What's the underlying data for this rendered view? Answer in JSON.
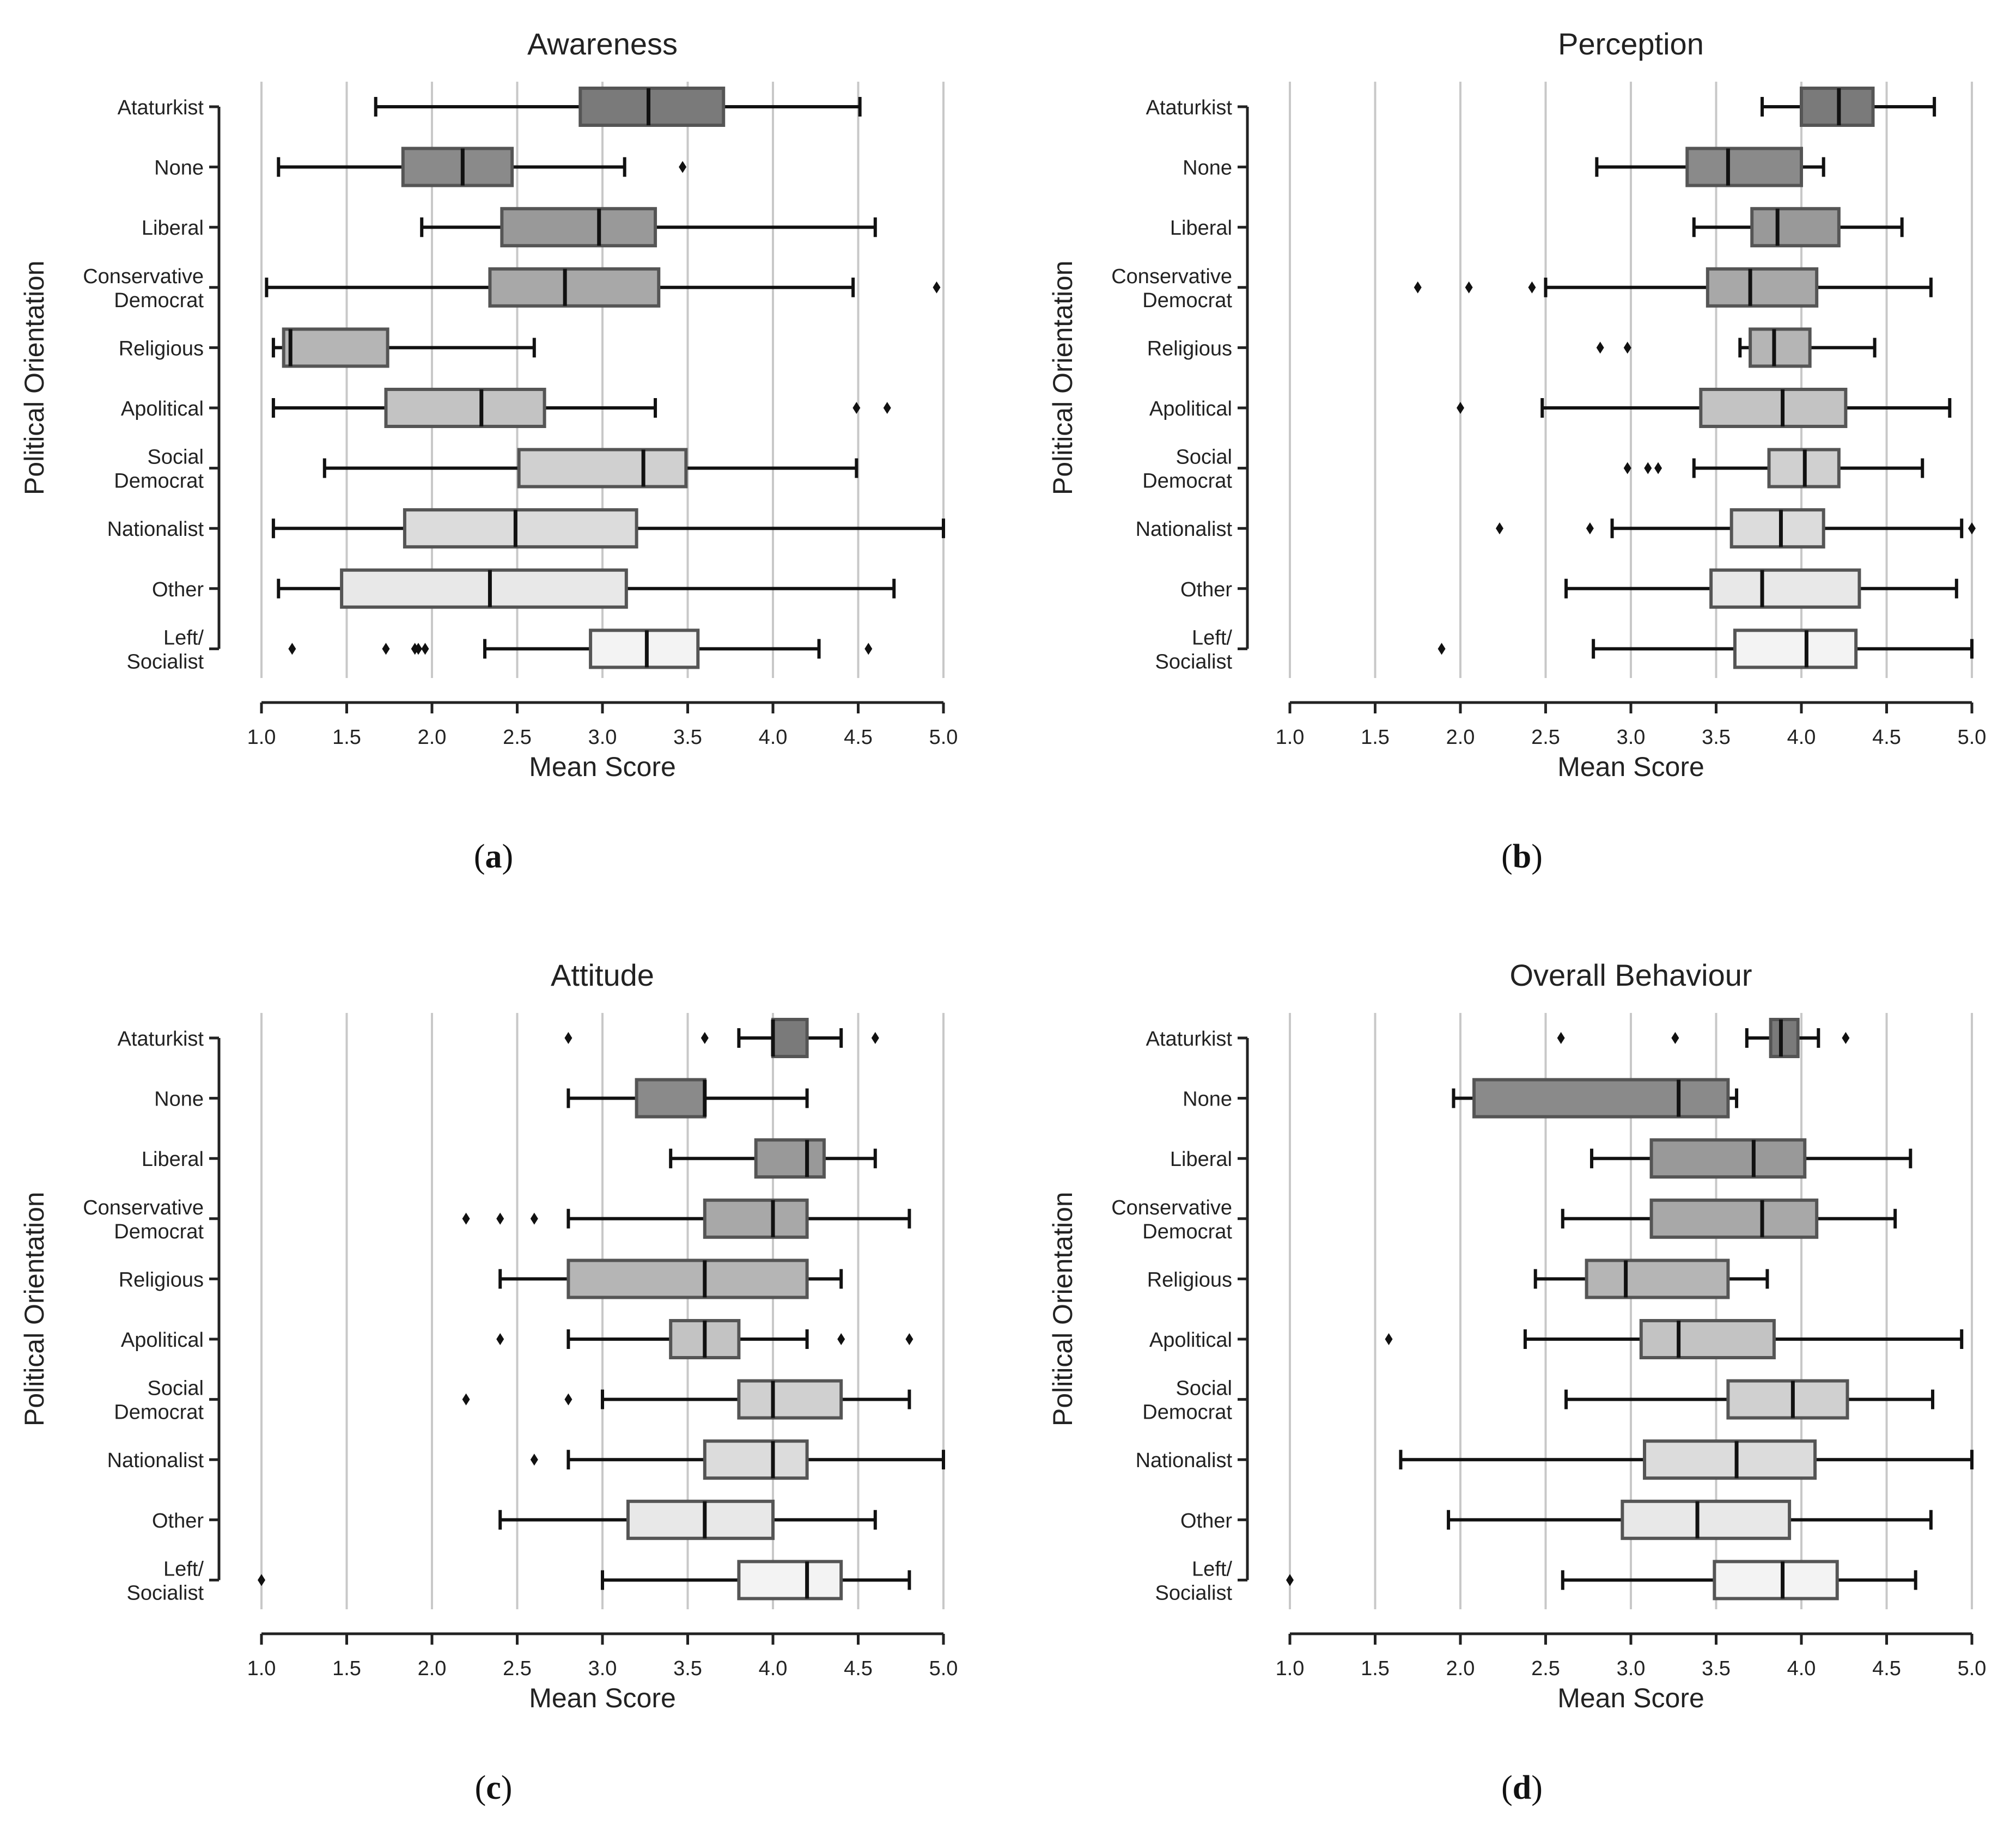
{
  "categories": [
    "Ataturkist",
    "None",
    "Liberal",
    "Conservative Democrat",
    "Religious",
    "Apolitical",
    "Social Democrat",
    "Nationalist",
    "Other",
    "Left/ Socialist"
  ],
  "category_lines": [
    [
      "Ataturkist"
    ],
    [
      "None"
    ],
    [
      "Liberal"
    ],
    [
      "Conservative",
      "Democrat"
    ],
    [
      "Religious"
    ],
    [
      "Apolitical"
    ],
    [
      "Social",
      "Democrat"
    ],
    [
      "Nationalist"
    ],
    [
      "Other"
    ],
    [
      "Left/",
      "Socialist"
    ]
  ],
  "box_fills": [
    "#7a7a7a",
    "#8a8a8a",
    "#999999",
    "#a8a8a8",
    "#b5b5b5",
    "#c3c3c3",
    "#d0d0d0",
    "#dcdcdc",
    "#e8e8e8",
    "#f3f3f3"
  ],
  "box_stroke": "#555555",
  "grid_color": "#c8c8c8",
  "ylabel": "Political Orientation",
  "xlabel": "Mean Score",
  "chart_data": [
    {
      "type": "box",
      "label": "a",
      "title": "Awareness",
      "xlabel": "Mean Score",
      "ylabel": "Political Orientation",
      "xlim": [
        1.0,
        5.0
      ],
      "xticks": [
        "1.0",
        "1.5",
        "2.0",
        "2.5",
        "3.0",
        "3.5",
        "4.0",
        "4.5",
        "5.0"
      ],
      "series": [
        {
          "name": "Ataturkist",
          "whisker_low": 1.67,
          "q1": 2.87,
          "median": 3.27,
          "q3": 3.71,
          "whisker_high": 4.51,
          "outliers": []
        },
        {
          "name": "None",
          "whisker_low": 1.1,
          "q1": 1.83,
          "median": 2.18,
          "q3": 2.47,
          "whisker_high": 3.13,
          "outliers": [
            3.47
          ]
        },
        {
          "name": "Liberal",
          "whisker_low": 1.94,
          "q1": 2.41,
          "median": 2.98,
          "q3": 3.31,
          "whisker_high": 4.6,
          "outliers": []
        },
        {
          "name": "Conservative Democrat",
          "whisker_low": 1.03,
          "q1": 2.34,
          "median": 2.78,
          "q3": 3.33,
          "whisker_high": 4.47,
          "outliers": [
            4.96
          ]
        },
        {
          "name": "Religious",
          "whisker_low": 1.07,
          "q1": 1.13,
          "median": 1.17,
          "q3": 1.74,
          "whisker_high": 2.6,
          "outliers": []
        },
        {
          "name": "Apolitical",
          "whisker_low": 1.07,
          "q1": 1.73,
          "median": 2.29,
          "q3": 2.66,
          "whisker_high": 3.31,
          "outliers": [
            4.49,
            4.67
          ]
        },
        {
          "name": "Social Democrat",
          "whisker_low": 1.37,
          "q1": 2.51,
          "median": 3.24,
          "q3": 3.49,
          "whisker_high": 4.49,
          "outliers": []
        },
        {
          "name": "Nationalist",
          "whisker_low": 1.07,
          "q1": 1.84,
          "median": 2.49,
          "q3": 3.2,
          "whisker_high": 5.0,
          "outliers": []
        },
        {
          "name": "Other",
          "whisker_low": 1.1,
          "q1": 1.47,
          "median": 2.34,
          "q3": 3.14,
          "whisker_high": 4.71,
          "outliers": []
        },
        {
          "name": "Left/ Socialist",
          "whisker_low": 2.31,
          "q1": 2.93,
          "median": 3.26,
          "q3": 3.56,
          "whisker_high": 4.27,
          "outliers": [
            1.18,
            1.73,
            1.9,
            1.92,
            1.96,
            4.56
          ]
        }
      ]
    },
    {
      "type": "box",
      "label": "b",
      "title": "Perception",
      "xlabel": "Mean Score",
      "ylabel": "Political Orientation",
      "xlim": [
        1.0,
        5.0
      ],
      "xticks": [
        "1.0",
        "1.5",
        "2.0",
        "2.5",
        "3.0",
        "3.5",
        "4.0",
        "4.5",
        "5.0"
      ],
      "series": [
        {
          "name": "Ataturkist",
          "whisker_low": 3.77,
          "q1": 4.0,
          "median": 4.22,
          "q3": 4.42,
          "whisker_high": 4.78,
          "outliers": []
        },
        {
          "name": "None",
          "whisker_low": 2.8,
          "q1": 3.33,
          "median": 3.57,
          "q3": 4.0,
          "whisker_high": 4.13,
          "outliers": []
        },
        {
          "name": "Liberal",
          "whisker_low": 3.37,
          "q1": 3.71,
          "median": 3.86,
          "q3": 4.22,
          "whisker_high": 4.59,
          "outliers": []
        },
        {
          "name": "Conservative Democrat",
          "whisker_low": 2.5,
          "q1": 3.45,
          "median": 3.7,
          "q3": 4.09,
          "whisker_high": 4.76,
          "outliers": [
            1.75,
            2.05,
            2.42
          ]
        },
        {
          "name": "Religious",
          "whisker_low": 3.64,
          "q1": 3.7,
          "median": 3.84,
          "q3": 4.05,
          "whisker_high": 4.43,
          "outliers": [
            2.82,
            2.98
          ]
        },
        {
          "name": "Apolitical",
          "whisker_low": 2.48,
          "q1": 3.41,
          "median": 3.89,
          "q3": 4.26,
          "whisker_high": 4.87,
          "outliers": [
            2.0
          ]
        },
        {
          "name": "Social Democrat",
          "whisker_low": 3.37,
          "q1": 3.81,
          "median": 4.02,
          "q3": 4.22,
          "whisker_high": 4.71,
          "outliers": [
            2.98,
            3.1,
            3.16
          ]
        },
        {
          "name": "Nationalist",
          "whisker_low": 2.89,
          "q1": 3.59,
          "median": 3.88,
          "q3": 4.13,
          "whisker_high": 4.94,
          "outliers": [
            2.23,
            2.76,
            5.0
          ]
        },
        {
          "name": "Other",
          "whisker_low": 2.62,
          "q1": 3.47,
          "median": 3.77,
          "q3": 4.34,
          "whisker_high": 4.91,
          "outliers": []
        },
        {
          "name": "Left/ Socialist",
          "whisker_low": 2.78,
          "q1": 3.61,
          "median": 4.03,
          "q3": 4.32,
          "whisker_high": 5.0,
          "outliers": [
            1.89
          ]
        }
      ]
    },
    {
      "type": "box",
      "label": "c",
      "title": "Attitude",
      "xlabel": "Mean Score",
      "ylabel": "Political Orientation",
      "xlim": [
        1.0,
        5.0
      ],
      "xticks": [
        "1.0",
        "1.5",
        "2.0",
        "2.5",
        "3.0",
        "3.5",
        "4.0",
        "4.5",
        "5.0"
      ],
      "series": [
        {
          "name": "Ataturkist",
          "whisker_low": 3.8,
          "q1": 4.0,
          "median": 4.0,
          "q3": 4.2,
          "whisker_high": 4.4,
          "outliers": [
            2.8,
            3.6,
            4.6
          ]
        },
        {
          "name": "None",
          "whisker_low": 2.8,
          "q1": 3.2,
          "median": 3.6,
          "q3": 3.6,
          "whisker_high": 4.2,
          "outliers": []
        },
        {
          "name": "Liberal",
          "whisker_low": 3.4,
          "q1": 3.9,
          "median": 4.2,
          "q3": 4.3,
          "whisker_high": 4.6,
          "outliers": []
        },
        {
          "name": "Conservative Democrat",
          "whisker_low": 2.8,
          "q1": 3.6,
          "median": 4.0,
          "q3": 4.2,
          "whisker_high": 4.8,
          "outliers": [
            2.2,
            2.4,
            2.6
          ]
        },
        {
          "name": "Religious",
          "whisker_low": 2.4,
          "q1": 2.8,
          "median": 3.6,
          "q3": 4.2,
          "whisker_high": 4.4,
          "outliers": []
        },
        {
          "name": "Apolitical",
          "whisker_low": 2.8,
          "q1": 3.4,
          "median": 3.6,
          "q3": 3.8,
          "whisker_high": 4.2,
          "outliers": [
            2.4,
            4.4,
            4.8
          ]
        },
        {
          "name": "Social Democrat",
          "whisker_low": 3.0,
          "q1": 3.8,
          "median": 4.0,
          "q3": 4.4,
          "whisker_high": 4.8,
          "outliers": [
            2.2,
            2.8
          ]
        },
        {
          "name": "Nationalist",
          "whisker_low": 2.8,
          "q1": 3.6,
          "median": 4.0,
          "q3": 4.2,
          "whisker_high": 5.0,
          "outliers": [
            2.6
          ]
        },
        {
          "name": "Other",
          "whisker_low": 2.4,
          "q1": 3.15,
          "median": 3.6,
          "q3": 4.0,
          "whisker_high": 4.6,
          "outliers": []
        },
        {
          "name": "Left/ Socialist",
          "whisker_low": 3.0,
          "q1": 3.8,
          "median": 4.2,
          "q3": 4.4,
          "whisker_high": 4.8,
          "outliers": [
            1.0
          ]
        }
      ]
    },
    {
      "type": "box",
      "label": "d",
      "title": "Overall Behaviour",
      "xlabel": "Mean Score",
      "ylabel": "Political Orientation",
      "xlim": [
        1.0,
        5.0
      ],
      "xticks": [
        "1.0",
        "1.5",
        "2.0",
        "2.5",
        "3.0",
        "3.5",
        "4.0",
        "4.5",
        "5.0"
      ],
      "series": [
        {
          "name": "Ataturkist",
          "whisker_low": 3.68,
          "q1": 3.82,
          "median": 3.88,
          "q3": 3.98,
          "whisker_high": 4.1,
          "outliers": [
            2.59,
            3.26,
            4.26
          ]
        },
        {
          "name": "None",
          "whisker_low": 1.96,
          "q1": 2.08,
          "median": 3.28,
          "q3": 3.57,
          "whisker_high": 3.62,
          "outliers": []
        },
        {
          "name": "Liberal",
          "whisker_low": 2.77,
          "q1": 3.12,
          "median": 3.72,
          "q3": 4.02,
          "whisker_high": 4.64,
          "outliers": []
        },
        {
          "name": "Conservative Democrat",
          "whisker_low": 2.6,
          "q1": 3.12,
          "median": 3.77,
          "q3": 4.09,
          "whisker_high": 4.55,
          "outliers": []
        },
        {
          "name": "Religious",
          "whisker_low": 2.44,
          "q1": 2.74,
          "median": 2.97,
          "q3": 3.57,
          "whisker_high": 3.8,
          "outliers": []
        },
        {
          "name": "Apolitical",
          "whisker_low": 2.38,
          "q1": 3.06,
          "median": 3.28,
          "q3": 3.84,
          "whisker_high": 4.94,
          "outliers": [
            1.58
          ]
        },
        {
          "name": "Social Democrat",
          "whisker_low": 2.62,
          "q1": 3.57,
          "median": 3.95,
          "q3": 4.27,
          "whisker_high": 4.77,
          "outliers": []
        },
        {
          "name": "Nationalist",
          "whisker_low": 1.65,
          "q1": 3.08,
          "median": 3.62,
          "q3": 4.08,
          "whisker_high": 5.0,
          "outliers": []
        },
        {
          "name": "Other",
          "whisker_low": 1.93,
          "q1": 2.95,
          "median": 3.39,
          "q3": 3.93,
          "whisker_high": 4.76,
          "outliers": []
        },
        {
          "name": "Left/ Socialist",
          "whisker_low": 2.6,
          "q1": 3.49,
          "median": 3.89,
          "q3": 4.21,
          "whisker_high": 4.67,
          "outliers": [
            1.0
          ]
        }
      ]
    }
  ]
}
